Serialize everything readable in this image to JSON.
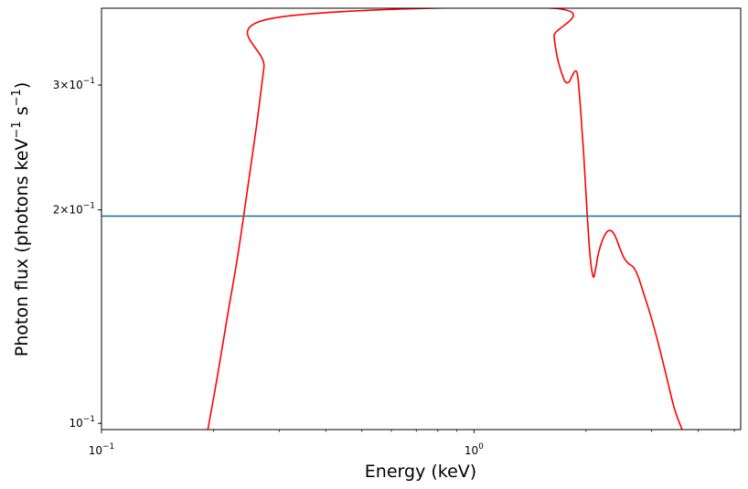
{
  "chart_data": {
    "type": "line",
    "title": "",
    "xlabel": "Energy (keV)",
    "ylabel_main": "Photon flux (photons keV",
    "ylabel_sup1": "−1",
    "ylabel_mid": " s",
    "ylabel_sup2": "−1",
    "ylabel_end": ")",
    "xscale": "log",
    "yscale": "log",
    "xlim": [
      0.1,
      5.2
    ],
    "ylim": [
      0.098,
      0.385
    ],
    "grid": false,
    "x_ticks": [
      {
        "value": 0.1,
        "base": "10",
        "exp": "−1"
      },
      {
        "value": 1.0,
        "base": "10",
        "exp": "0"
      }
    ],
    "y_ticks": [
      {
        "value": 0.1,
        "mant": "",
        "base": "10",
        "exp": "−1"
      },
      {
        "value": 0.2,
        "mant": "2×",
        "base": "10",
        "exp": "−1"
      },
      {
        "value": 0.3,
        "mant": "3×",
        "base": "10",
        "exp": "−1"
      }
    ],
    "series": [
      {
        "color": "#ff0000",
        "x": [
          0.193,
          0.205,
          0.218,
          0.232,
          0.246,
          0.26,
          0.273,
          0.283,
          1.62,
          1.64,
          1.67,
          1.7,
          1.73,
          1.76,
          1.8,
          1.84,
          1.875,
          1.9,
          1.93,
          1.97,
          2.01,
          2.05,
          2.09,
          2.12,
          2.16,
          2.21,
          2.27,
          2.33,
          2.39,
          2.46,
          2.53,
          2.6,
          2.68,
          2.76,
          2.86,
          2.98,
          3.12,
          3.28,
          3.45,
          3.62
        ],
        "y": [
          0.098,
          0.117,
          0.142,
          0.172,
          0.212,
          0.26,
          0.318,
          0.372,
          0.385,
          0.352,
          0.33,
          0.318,
          0.309,
          0.303,
          0.303,
          0.31,
          0.314,
          0.308,
          0.28,
          0.24,
          0.2,
          0.172,
          0.161,
          0.165,
          0.174,
          0.181,
          0.186,
          0.187,
          0.184,
          0.177,
          0.171,
          0.168,
          0.166,
          0.161,
          0.152,
          0.142,
          0.13,
          0.117,
          0.105,
          0.098
        ]
      },
      {
        "color": "#1f7a99",
        "x": [
          0.1,
          5.2
        ],
        "y": [
          0.196,
          0.196
        ]
      }
    ]
  }
}
